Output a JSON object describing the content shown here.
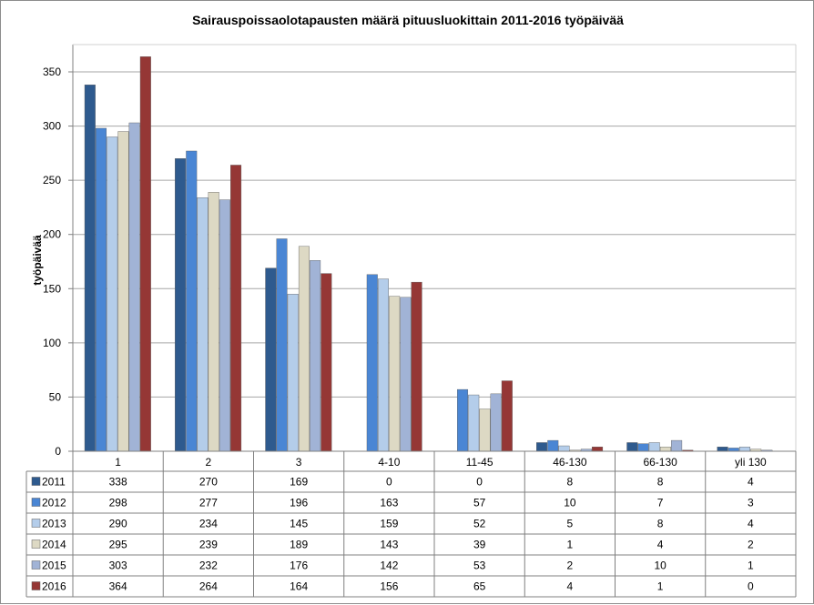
{
  "chart_data": {
    "type": "bar",
    "title": "Sairauspoissaolotapausten  määrä pituusluokittain 2011-2016 työpäivää",
    "ylabel": "työpäivää",
    "xlabel": "",
    "ylim": [
      0,
      350
    ],
    "yticks": [
      "0",
      "50",
      "100",
      "150",
      "200",
      "250",
      "300",
      "350"
    ],
    "grid": true,
    "legend": "data-table",
    "categories": [
      "1",
      "2",
      "3",
      "4-10",
      "11-45",
      "46-130",
      "66-130",
      "yli 130"
    ],
    "series": [
      {
        "name": "2011",
        "color": "#2e5a8e",
        "values": [
          338,
          270,
          169,
          0,
          0,
          8,
          8,
          4
        ]
      },
      {
        "name": "2012",
        "color": "#4a86d4",
        "values": [
          298,
          277,
          196,
          163,
          57,
          10,
          7,
          3
        ]
      },
      {
        "name": "2013",
        "color": "#b4cdea",
        "values": [
          290,
          234,
          145,
          159,
          52,
          5,
          8,
          4
        ]
      },
      {
        "name": "2014",
        "color": "#ddd9c4",
        "values": [
          295,
          239,
          189,
          143,
          39,
          1,
          4,
          2
        ]
      },
      {
        "name": "2015",
        "color": "#a1b3d6",
        "values": [
          303,
          232,
          176,
          142,
          53,
          2,
          10,
          1
        ]
      },
      {
        "name": "2016",
        "color": "#953735",
        "values": [
          364,
          264,
          164,
          156,
          65,
          4,
          1,
          0
        ]
      }
    ]
  }
}
